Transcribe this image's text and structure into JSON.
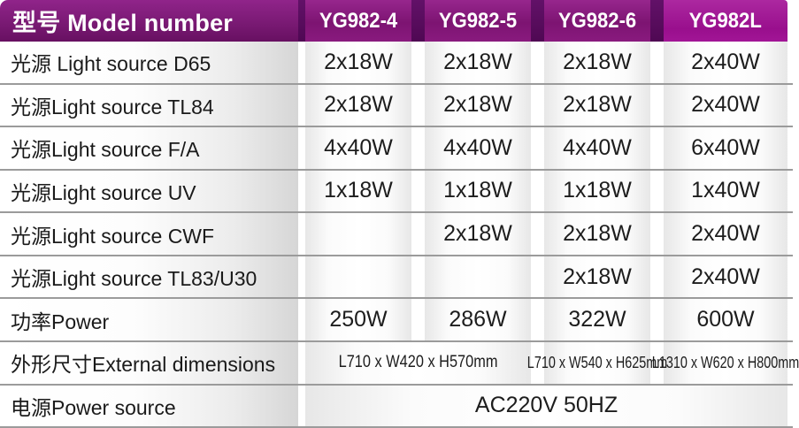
{
  "table": {
    "header": {
      "label": "型号 Model number",
      "columns": [
        "YG982-4",
        "YG982-5",
        "YG982-6",
        "YG982L"
      ]
    },
    "rows": [
      {
        "label": "光源 Light source D65",
        "values": [
          "2x18W",
          "2x18W",
          "2x18W",
          "2x40W"
        ]
      },
      {
        "label": "光源Light source TL84",
        "values": [
          "2x18W",
          "2x18W",
          "2x18W",
          "2x40W"
        ]
      },
      {
        "label": "光源Light source F/A",
        "values": [
          "4x40W",
          "4x40W",
          "4x40W",
          "6x40W"
        ]
      },
      {
        "label": "光源Light source UV",
        "values": [
          "1x18W",
          "1x18W",
          "1x18W",
          "1x40W"
        ]
      },
      {
        "label": "光源Light source CWF",
        "values": [
          "",
          "2x18W",
          "2x18W",
          "2x40W"
        ]
      },
      {
        "label": "光源Light source TL83/U30",
        "values": [
          "",
          "",
          "2x18W",
          "2x40W"
        ]
      },
      {
        "label": "功率Power",
        "values": [
          "250W",
          "286W",
          "322W",
          "600W"
        ]
      }
    ],
    "dimensions_row": {
      "label": "外形尺寸External dimensions",
      "span_cols_1_2": "L710 x W420 x H570mm",
      "col_3": "L710 x W540 x H625mm",
      "col_4": "L1310 x W620 x H800mm"
    },
    "power_source_row": {
      "label": "电源Power source",
      "value": "AC220V 50HZ"
    },
    "colors": {
      "header_purple_dark": "#671061",
      "header_purple_mid": "#7d1472",
      "header_magenta_bright": "#a21596",
      "header_separator": "#4f0853",
      "row_divider_gray": "#9b9b9b",
      "cell_edge_gray": "#e7e7e7",
      "text_dark": "#1a1a1a",
      "text_white": "#ffffff"
    }
  }
}
